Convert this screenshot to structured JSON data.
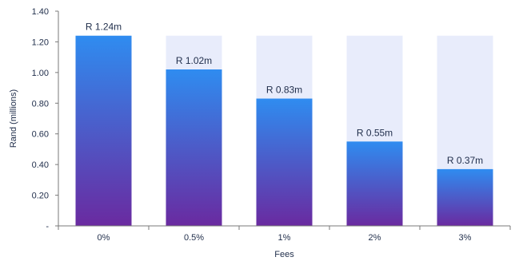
{
  "chart_data": {
    "type": "bar",
    "categories": [
      "0%",
      "0.5%",
      "1%",
      "2%",
      "3%"
    ],
    "values": [
      1.24,
      1.02,
      0.83,
      0.55,
      0.37
    ],
    "reference_values": [
      1.24,
      1.24,
      1.24,
      1.24,
      1.24
    ],
    "data_labels": [
      "R 1.24m",
      "R 1.02m",
      "R 0.83m",
      "R 0.55m",
      "R 0.37m"
    ],
    "xlabel": "Fees",
    "ylabel": "Rand (millions)",
    "ylim": [
      0,
      1.4
    ],
    "yticks": [
      0,
      0.2,
      0.4,
      0.6,
      0.8,
      1.0,
      1.2,
      1.4
    ],
    "ytick_labels": [
      "-",
      "0.20",
      "0.40",
      "0.60",
      "0.80",
      "1.00",
      "1.20",
      "1.40"
    ],
    "grid": false,
    "legend": "none",
    "colors": {
      "bar_top": "#2f8cf0",
      "bar_bottom": "#6a2aa0",
      "background_bar": "#e8ecfb",
      "axis": "#7a7a7a",
      "text": "#1f2d4a"
    }
  }
}
